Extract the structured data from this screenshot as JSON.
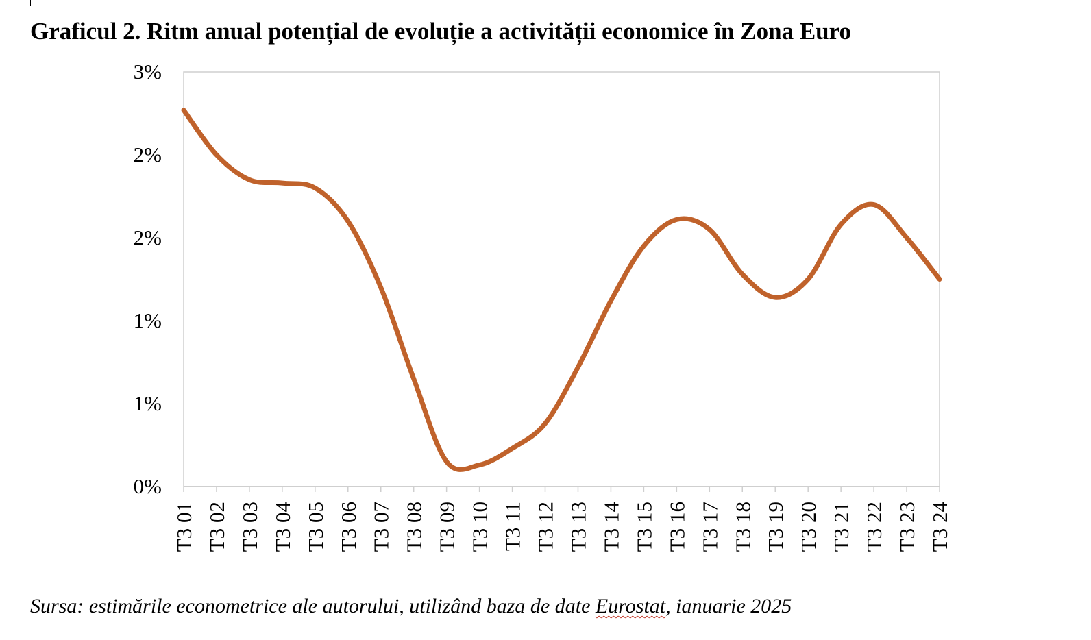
{
  "title": "Graficul 2. Ritm anual potențial de evoluție a activității economice în Zona Euro",
  "source": {
    "prefix": "Sursa: estimările econometrice ale autorului, utilizând baza de date ",
    "flagged_word": "Eurostat",
    "suffix": ", ianuarie 2025"
  },
  "chart_data": {
    "type": "line",
    "categories": [
      "T3 01",
      "T3 02",
      "T3 03",
      "T3 04",
      "T3 05",
      "T3 06",
      "T3 07",
      "T3 08",
      "T3 09",
      "T3 10",
      "T3 11",
      "T3 12",
      "T3 13",
      "T3 14",
      "T3 15",
      "T3 16",
      "T3 17",
      "T3 18",
      "T3 19",
      "T3 20",
      "T3 21",
      "T3 22",
      "T3 23",
      "T3 24"
    ],
    "series": [
      {
        "color": "#c0622b",
        "values": [
          2.27,
          2.0,
          1.85,
          1.83,
          1.8,
          1.6,
          1.2,
          0.65,
          0.15,
          0.13,
          0.23,
          0.38,
          0.72,
          1.12,
          1.45,
          1.61,
          1.55,
          1.28,
          1.14,
          1.25,
          1.58,
          1.7,
          1.5,
          1.25
        ]
      }
    ],
    "yticks": [
      "0%",
      "1%",
      "1%",
      "2%",
      "2%",
      "3%"
    ],
    "ylim": [
      0,
      2.5
    ],
    "grid": false,
    "legend": "none"
  }
}
